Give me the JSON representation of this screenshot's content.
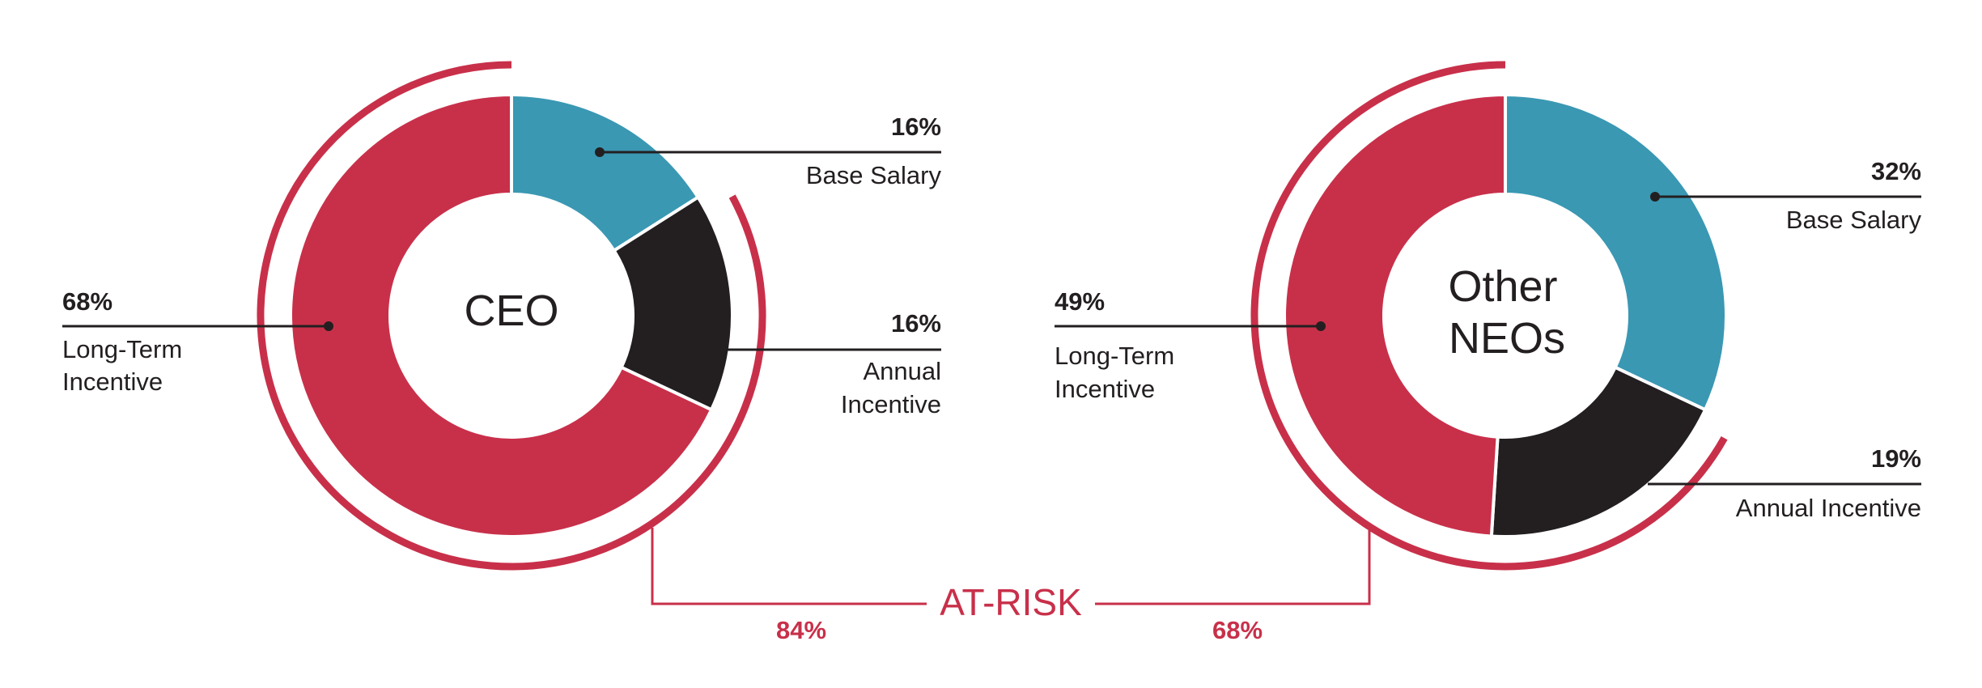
{
  "colors": {
    "base_salary": "#3a98b3",
    "annual_incentive": "#231f20",
    "long_term_incentive": "#c8304a",
    "at_risk": "#c8304a",
    "text": "#231f20"
  },
  "chart_data": [
    {
      "type": "pie",
      "title": "CEO",
      "title_lines": [
        "CEO"
      ],
      "slices": [
        {
          "name": "Base Salary",
          "value": 16,
          "label_pct": "16%",
          "label_lines": [
            "Base Salary"
          ]
        },
        {
          "name": "Annual Incentive",
          "value": 16,
          "label_pct": "16%",
          "label_lines": [
            "Annual",
            "Incentive"
          ]
        },
        {
          "name": "Long-Term Incentive",
          "value": 68,
          "label_pct": "68%",
          "label_lines": [
            "Long-Term",
            "Incentive"
          ]
        }
      ],
      "at_risk_value": 84,
      "at_risk_label": "84%"
    },
    {
      "type": "pie",
      "title": "Other NEOs",
      "title_lines": [
        "Other",
        "NEOs"
      ],
      "slices": [
        {
          "name": "Base Salary",
          "value": 32,
          "label_pct": "32%",
          "label_lines": [
            "Base Salary"
          ]
        },
        {
          "name": "Annual Incentive",
          "value": 19,
          "label_pct": "19%",
          "label_lines": [
            "Annual Incentive"
          ]
        },
        {
          "name": "Long-Term Incentive",
          "value": 49,
          "label_pct": "49%",
          "label_lines": [
            "Long-Term",
            "Incentive"
          ]
        }
      ],
      "at_risk_value": 68,
      "at_risk_label": "68%"
    }
  ],
  "at_risk": {
    "title": "AT-RISK"
  }
}
